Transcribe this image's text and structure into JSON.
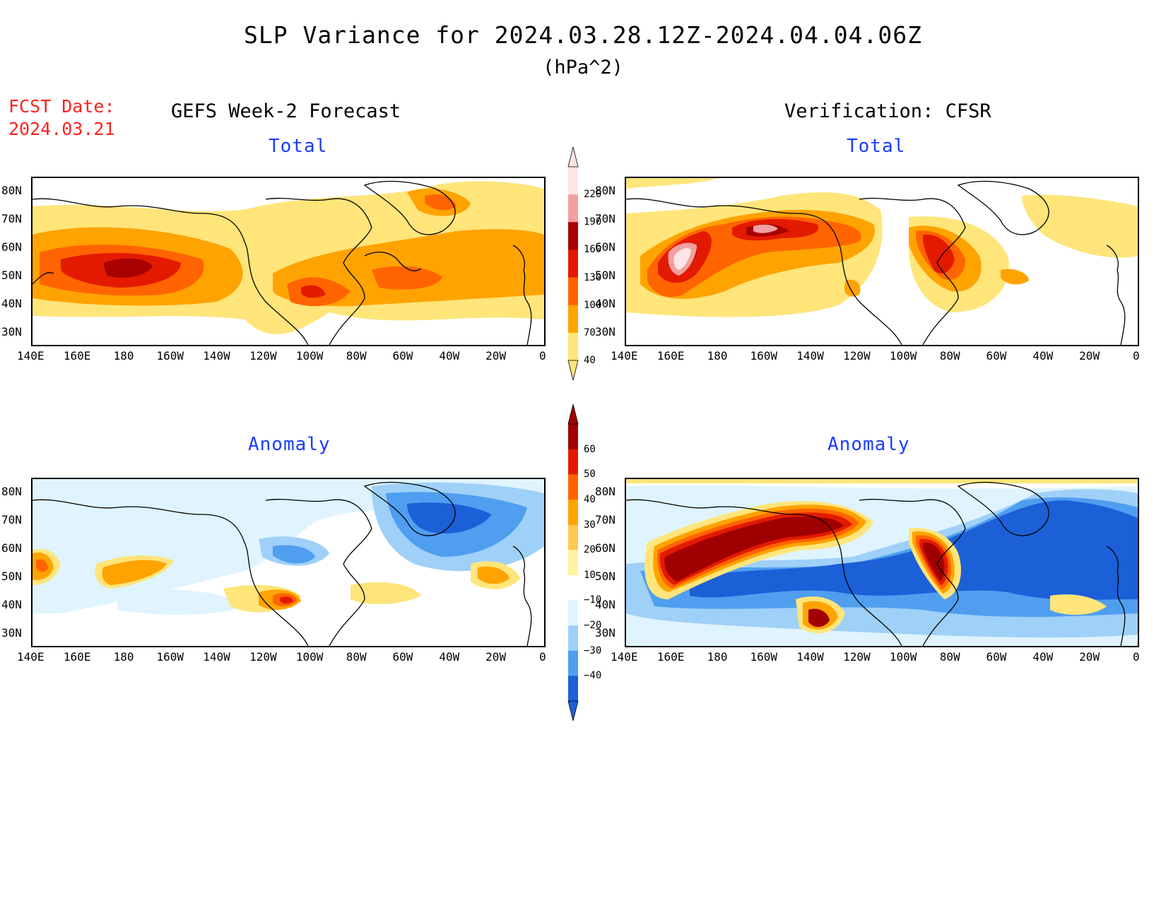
{
  "header": {
    "title": "SLP Variance for 2024.03.28.12Z-2024.04.04.06Z",
    "units": "(hPa^2)",
    "fcst_label": "FCST Date:",
    "fcst_date": "2024.03.21"
  },
  "columns": {
    "forecast_title": "GEFS Week-2 Forecast",
    "verification_title": "Verification: CFSR"
  },
  "panels": {
    "forecast_total": {
      "subtitle": "Total"
    },
    "verification_total": {
      "subtitle": "Total"
    },
    "forecast_anomaly": {
      "subtitle": "Anomaly"
    },
    "verification_anomaly": {
      "subtitle": "Anomaly"
    }
  },
  "axes": {
    "lat_labels": [
      "80N",
      "70N",
      "60N",
      "50N",
      "40N",
      "30N"
    ],
    "lon_labels": [
      "140E",
      "160E",
      "180",
      "160W",
      "140W",
      "120W",
      "100W",
      "80W",
      "60W",
      "40W",
      "20W",
      "0"
    ]
  },
  "colorbars": {
    "total": {
      "labels": [
        "40",
        "70",
        "100",
        "130",
        "160",
        "190",
        "220"
      ],
      "colors": [
        "#ffe57a",
        "#ffa300",
        "#ff6400",
        "#e31a00",
        "#a80000",
        "#f0a0a0",
        "#ffe6e6"
      ]
    },
    "anomaly": {
      "labels": [
        "60",
        "50",
        "40",
        "30",
        "20",
        "10",
        "−10",
        "−20",
        "−30",
        "−40"
      ],
      "colors": [
        "#a00000",
        "#e31a00",
        "#ff6400",
        "#ffa300",
        "#ffc850",
        "#fff3a0",
        "#ffffff",
        "#dff4ff",
        "#9fd0f8",
        "#4f9ef0",
        "#1c60d8"
      ]
    }
  },
  "map_data": {
    "forecast_total_fills": [
      {
        "level": 40,
        "color": "#ffe57a",
        "note": "broad band 30N-75N"
      },
      {
        "level": 70,
        "color": "#ffa300",
        "region": "North Pacific & North Atlantic"
      },
      {
        "level": 100,
        "color": "#ff6400",
        "region": "N Pacific 40-55N; US plains; Atlantic ~45N"
      },
      {
        "level": 130,
        "color": "#e31a00",
        "region": "N Pacific 45-55N near dateline"
      },
      {
        "level": 160,
        "color": "#a80000",
        "region": "near 180, 50N"
      }
    ],
    "verification_total_fills": [
      {
        "level": 190,
        "color": "#f0a0a0",
        "region": "Kamchatka/Bering 45-60N; Gulf of Alaska 60N"
      },
      {
        "level": 220,
        "color": "#ffe6e6",
        "region": "core near 160E-170E, 50N"
      }
    ],
    "forecast_anomaly_fills": [
      {
        "level": -30,
        "color": "#4f9ef0",
        "region": "Greenland / N Atlantic"
      },
      {
        "level": 40,
        "color": "#ff6400",
        "region": "central US ~40N"
      }
    ],
    "verification_anomaly_fills": [
      {
        "level": 60,
        "color": "#a00000",
        "region": "Bering Sea–Alaska; Hudson Bay–Labrador"
      },
      {
        "level": -40,
        "color": "#1c60d8",
        "region": "N Atlantic/Greenland; N Pacific 45N"
      }
    ]
  }
}
